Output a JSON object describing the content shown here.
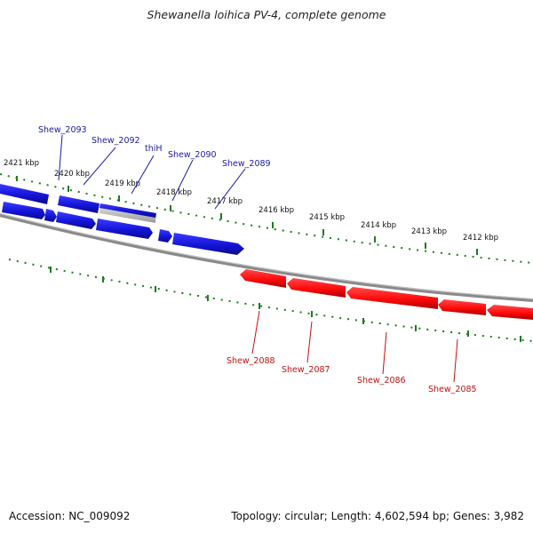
{
  "title": "Shewanella loihica PV-4, complete genome",
  "accession": "Accession: NC_009092",
  "summary": "Topology: circular; Length: 4,602,594 bp; Genes: 3,982",
  "colors": {
    "forward": "#1414d8",
    "reverse": "#ff0a0a",
    "backbone": "#8a8a8a",
    "ruler": "#1f7a1f",
    "forward_label": "#1a1aa8",
    "reverse_label": "#c01010"
  },
  "ruler_labels": [
    "2421 kbp",
    "2420 kbp",
    "2419 kbp",
    "2418 kbp",
    "2417 kbp",
    "2416 kbp",
    "2415 kbp",
    "2414 kbp",
    "2413 kbp",
    "2412 kbp"
  ],
  "forward_genes": [
    "Shew_2093",
    "Shew_2092",
    "thiH",
    "Shew_2090",
    "Shew_2089"
  ],
  "reverse_genes": [
    "Shew_2088",
    "Shew_2087",
    "Shew_2086",
    "Shew_2085"
  ]
}
